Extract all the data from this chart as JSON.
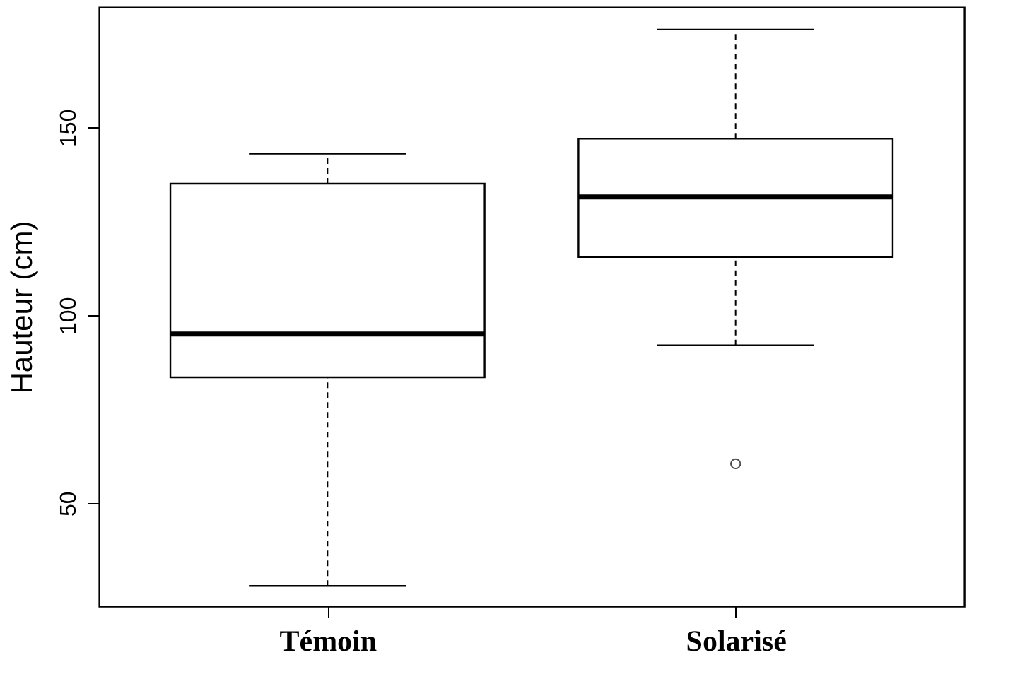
{
  "chart_data": {
    "type": "box",
    "ylabel": "Hauteur  (cm)",
    "categories": [
      "Témoin",
      "Solarisé"
    ],
    "boxes": [
      {
        "low": 28,
        "q1": 83.5,
        "median": 95,
        "q3": 135,
        "high": 143
      },
      {
        "low": 92,
        "q1": 115.5,
        "median": 131.5,
        "q3": 147,
        "high": 176,
        "outliers": [
          60.5
        ]
      }
    ],
    "ylim": [
      22.6,
      182
    ],
    "yticks": [
      50,
      100,
      150
    ],
    "grid": false
  }
}
